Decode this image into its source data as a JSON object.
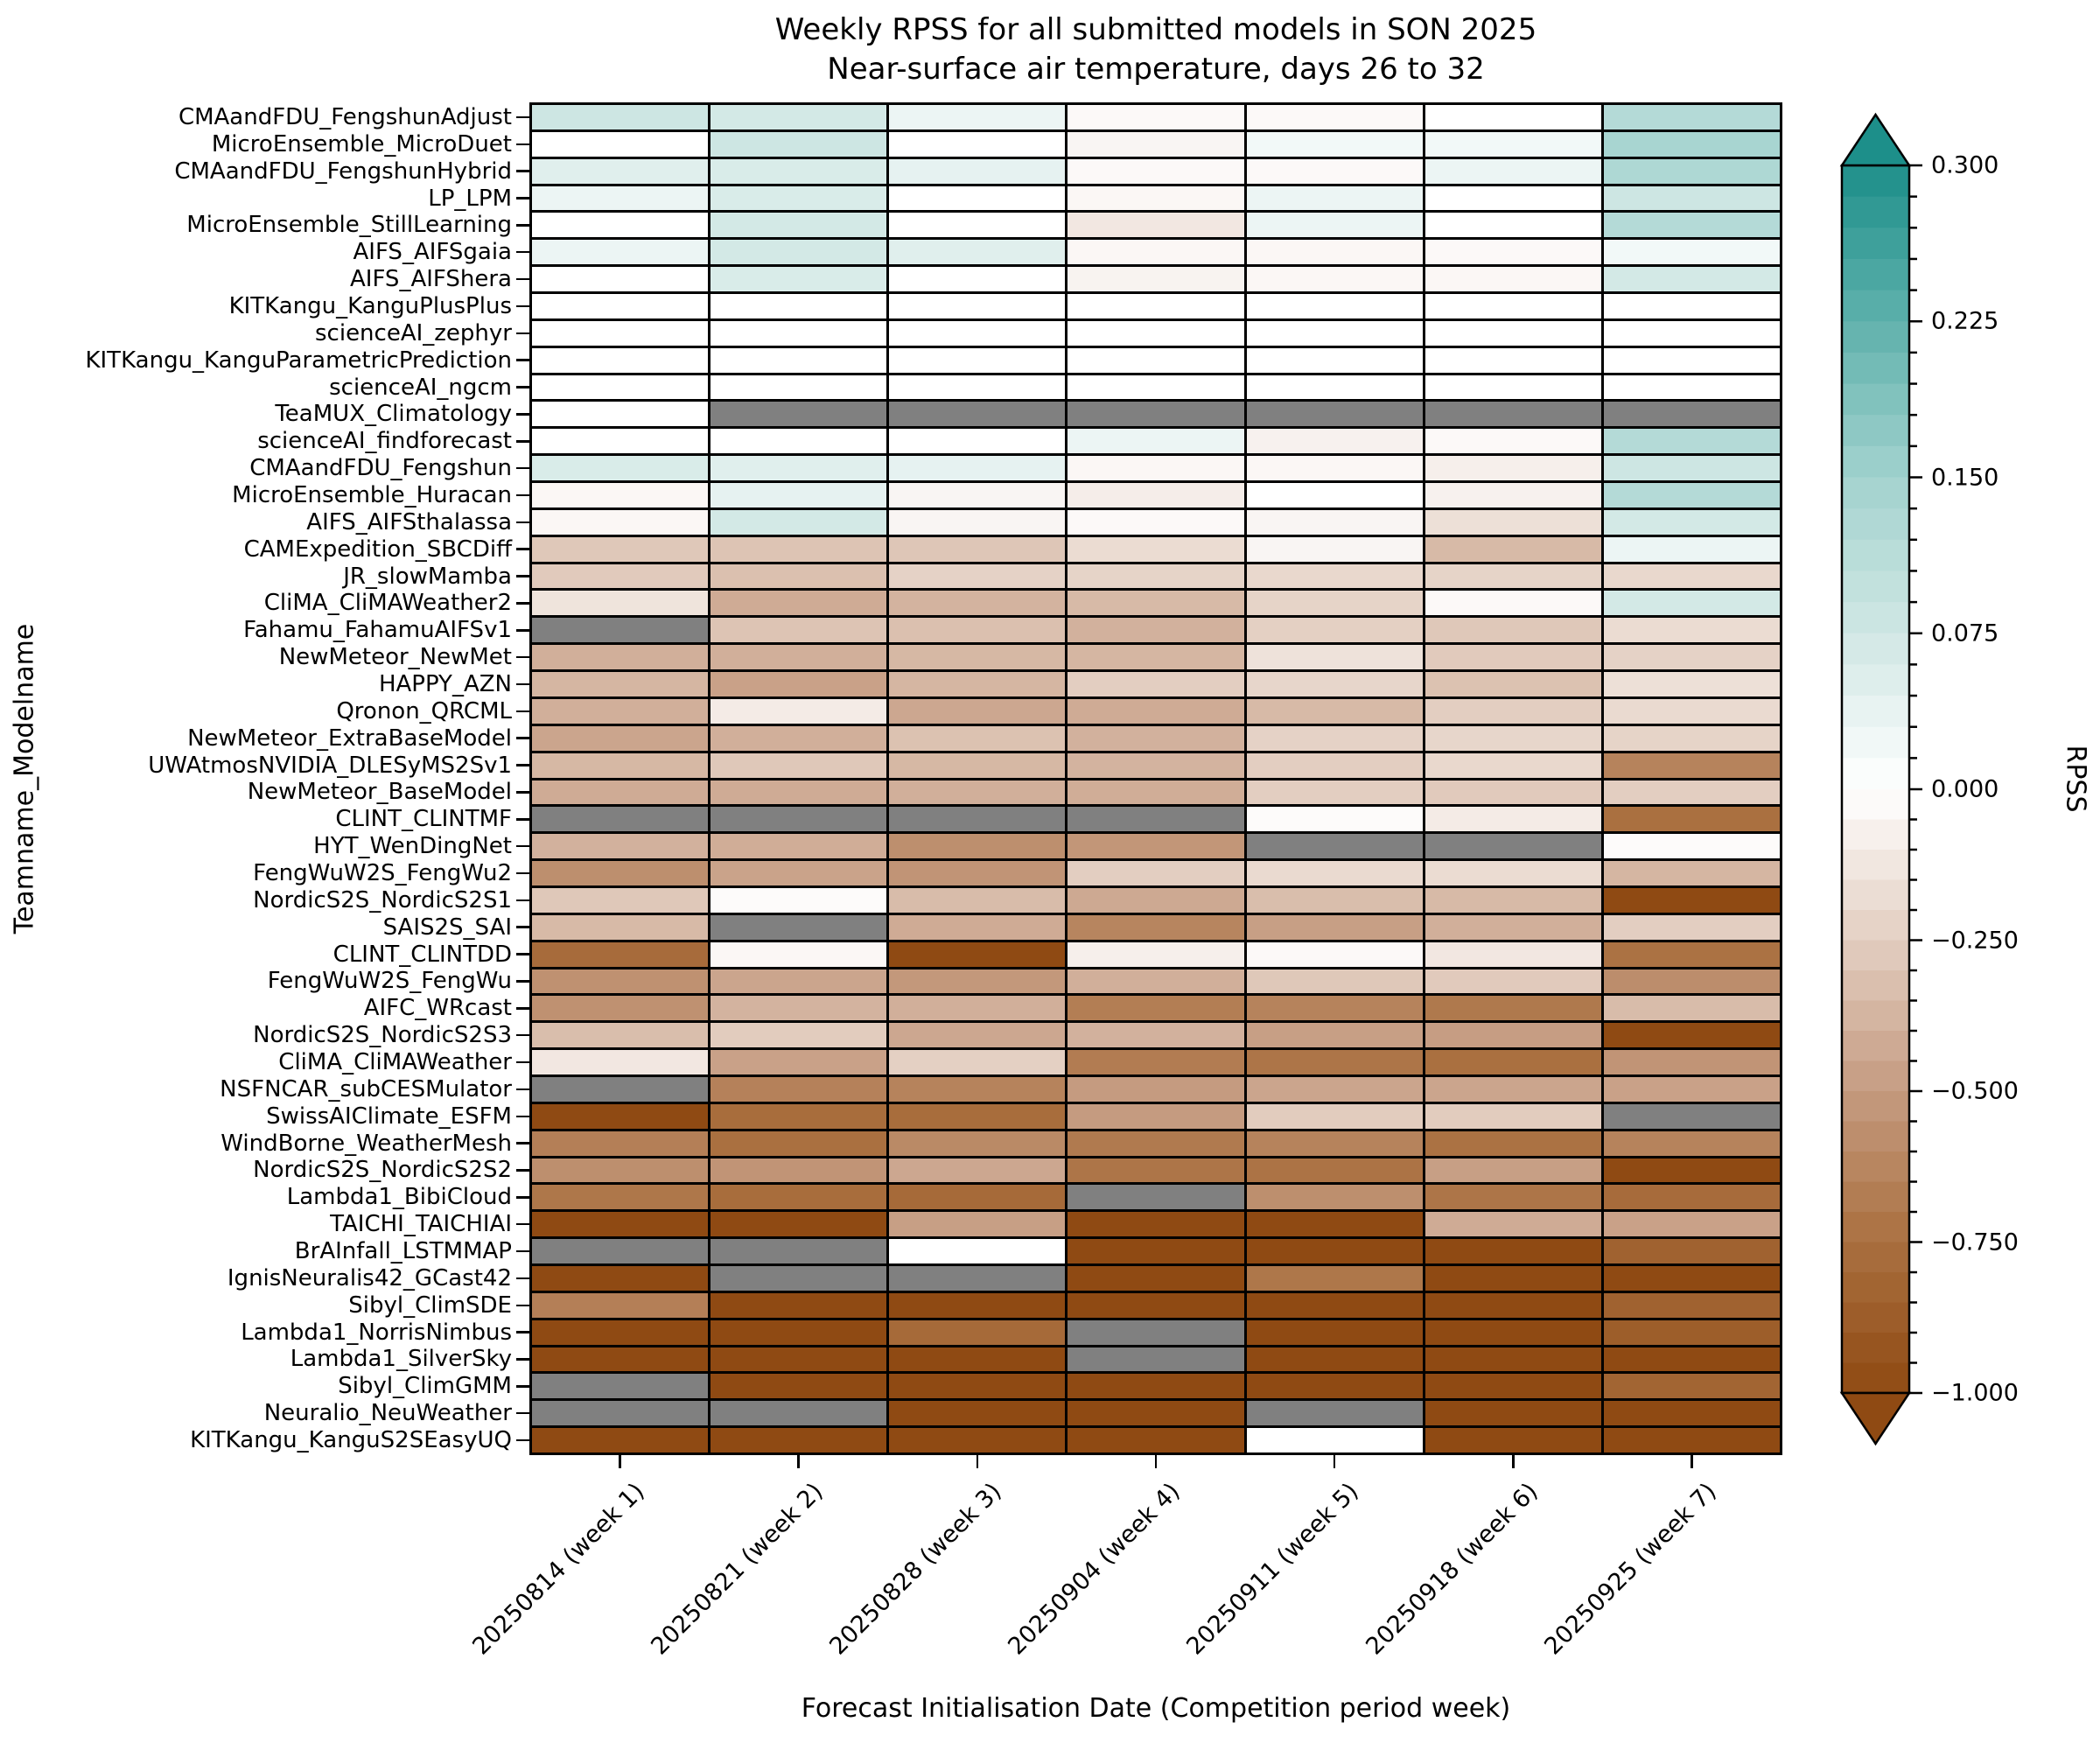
{
  "title": {
    "line1": "Weekly RPSS for all submitted models in SON 2025",
    "line2": "Near-surface air temperature, days 26 to 32"
  },
  "axes": {
    "xlabel": "Forecast Initialisation Date (Competition period week)",
    "ylabel": "Teamname_Modelname"
  },
  "colorbar": {
    "label": "RPSS",
    "ticks": [
      {
        "label": "0.300",
        "value": 0.3
      },
      {
        "label": "0.225",
        "value": 0.225
      },
      {
        "label": "0.150",
        "value": 0.15
      },
      {
        "label": "0.075",
        "value": 0.075
      },
      {
        "label": "0.000",
        "value": 0.0
      },
      {
        "label": "−0.250",
        "value": -0.25
      },
      {
        "label": "−0.500",
        "value": -0.5
      },
      {
        "label": "−0.750",
        "value": -0.75
      },
      {
        "label": "−1.000",
        "value": -1.0
      }
    ],
    "vmin": -1.0,
    "vcenter": 0.0,
    "vmax": 0.3,
    "positive_stops": [
      {
        "value": 0.0,
        "color": "#ffffff"
      },
      {
        "value": 0.075,
        "color": "#d0e7e4"
      },
      {
        "value": 0.15,
        "color": "#a2d2ce"
      },
      {
        "value": 0.225,
        "color": "#5fb1ac"
      },
      {
        "value": 0.3,
        "color": "#1d8f8a"
      }
    ],
    "negative_stops": [
      {
        "value": 0.0,
        "color": "#ffffff"
      },
      {
        "value": -0.25,
        "color": "#e3cec1"
      },
      {
        "value": -0.5,
        "color": "#c59b80"
      },
      {
        "value": -0.75,
        "color": "#aa7040"
      },
      {
        "value": -1.0,
        "color": "#8f4a13"
      }
    ],
    "missing_color": "#808080",
    "positive_levels": 20,
    "negative_levels": 20
  },
  "chart_data": {
    "type": "heatmap",
    "x_categories": [
      "20250814 (week 1)",
      "20250821 (week 2)",
      "20250828 (week 3)",
      "20250904 (week 4)",
      "20250911 (week 5)",
      "20250918 (week 6)",
      "20250925 (week 7)"
    ],
    "y_categories": [
      "CMAandFDU_FengshunAdjust",
      "MicroEnsemble_MicroDuet",
      "CMAandFDU_FengshunHybrid",
      "LP_LPM",
      "MicroEnsemble_StillLearning",
      "AIFS_AIFSgaia",
      "AIFS_AIFShera",
      "KITKangu_KanguPlusPlus",
      "scienceAI_zephyr",
      "KITKangu_KanguParametricPrediction",
      "scienceAI_ngcm",
      "TeaMUX_Climatology",
      "scienceAI_findforecast",
      "CMAandFDU_Fengshun",
      "MicroEnsemble_Huracan",
      "AIFS_AIFSthalassa",
      "CAMExpedition_SBCDiff",
      "JR_slowMamba",
      "CliMA_CliMAWeather2",
      "Fahamu_FahamuAIFSv1",
      "NewMeteor_NewMet",
      "HAPPY_AZN",
      "Qronon_QRCML",
      "NewMeteor_ExtraBaseModel",
      "UWAtmosNVIDIA_DLESyMS2Sv1",
      "NewMeteor_BaseModel",
      "CLINT_CLINTMF",
      "HYT_WenDingNet",
      "FengWuW2S_FengWu2",
      "NordicS2S_NordicS2S1",
      "SAIS2S_SAI",
      "CLINT_CLINTDD",
      "FengWuW2S_FengWu",
      "AIFC_WRcast",
      "NordicS2S_NordicS2S3",
      "CliMA_CliMAWeather",
      "NSFNCAR_subCESMulator",
      "SwissAIClimate_ESFM",
      "WindBorne_WeatherMesh",
      "NordicS2S_NordicS2S2",
      "Lambda1_BibiCloud",
      "TAICHI_TAICHIAI",
      "BrAInfall_LSTMMAP",
      "IgnisNeuralis42_GCast42",
      "Sibyl_ClimSDE",
      "Lambda1_NorrisNimbus",
      "Lambda1_SilverSky",
      "Sibyl_ClimGMM",
      "Neuralio_NeuWeather",
      "KITKangu_KanguS2SEasyUQ"
    ],
    "values": [
      [
        0.08,
        0.07,
        0.03,
        -0.03,
        -0.03,
        0.0,
        0.12
      ],
      [
        0.0,
        0.08,
        0.0,
        -0.05,
        0.02,
        0.02,
        0.14
      ],
      [
        0.05,
        0.06,
        0.04,
        -0.03,
        -0.03,
        0.03,
        0.13
      ],
      [
        0.03,
        0.06,
        0.0,
        -0.04,
        0.03,
        0.0,
        0.08
      ],
      [
        0.0,
        0.07,
        0.0,
        -0.12,
        0.03,
        0.0,
        0.12
      ],
      [
        0.03,
        0.07,
        0.05,
        -0.04,
        -0.04,
        -0.03,
        0.02
      ],
      [
        0.0,
        0.06,
        0.0,
        -0.06,
        -0.04,
        -0.04,
        0.07
      ],
      [
        0.0,
        0.0,
        0.0,
        0.0,
        0.0,
        0.0,
        0.0
      ],
      [
        0.0,
        0.0,
        0.0,
        0.0,
        0.0,
        0.0,
        0.0
      ],
      [
        0.0,
        0.0,
        0.0,
        0.0,
        0.0,
        0.0,
        0.0
      ],
      [
        0.0,
        0.0,
        0.0,
        0.0,
        0.0,
        0.0,
        0.0
      ],
      [
        0.0,
        null,
        null,
        null,
        null,
        null,
        null
      ],
      [
        0.0,
        0.0,
        0.0,
        0.03,
        -0.07,
        -0.03,
        0.12
      ],
      [
        0.06,
        0.05,
        0.04,
        -0.04,
        -0.04,
        -0.08,
        0.08
      ],
      [
        -0.04,
        0.04,
        -0.05,
        -0.09,
        0.0,
        -0.07,
        0.12
      ],
      [
        -0.04,
        0.07,
        -0.05,
        -0.03,
        -0.05,
        -0.16,
        0.07
      ],
      [
        -0.28,
        -0.3,
        -0.29,
        -0.18,
        -0.05,
        -0.35,
        0.03
      ],
      [
        -0.27,
        -0.32,
        -0.23,
        -0.22,
        -0.2,
        -0.22,
        -0.2
      ],
      [
        -0.14,
        -0.42,
        -0.38,
        -0.35,
        -0.22,
        -0.03,
        0.07
      ],
      [
        null,
        -0.3,
        -0.32,
        -0.39,
        -0.24,
        -0.28,
        -0.18
      ],
      [
        -0.4,
        -0.4,
        -0.36,
        -0.37,
        -0.15,
        -0.27,
        -0.23
      ],
      [
        -0.37,
        -0.47,
        -0.37,
        -0.25,
        -0.21,
        -0.31,
        -0.16
      ],
      [
        -0.4,
        -0.1,
        -0.44,
        -0.42,
        -0.35,
        -0.25,
        -0.19
      ],
      [
        -0.45,
        -0.4,
        -0.31,
        -0.39,
        -0.23,
        -0.21,
        -0.22
      ],
      [
        -0.36,
        -0.28,
        -0.36,
        -0.38,
        -0.25,
        -0.2,
        -0.64
      ],
      [
        -0.42,
        -0.42,
        -0.4,
        -0.41,
        -0.25,
        -0.27,
        -0.25
      ],
      [
        null,
        null,
        null,
        null,
        -0.02,
        -0.1,
        -0.75
      ],
      [
        -0.39,
        -0.41,
        -0.57,
        -0.53,
        null,
        null,
        -0.02
      ],
      [
        -0.57,
        -0.46,
        -0.54,
        -0.25,
        -0.19,
        -0.18,
        -0.37
      ],
      [
        -0.28,
        -0.02,
        -0.34,
        -0.43,
        -0.33,
        -0.35,
        -1.0
      ],
      [
        -0.35,
        null,
        -0.42,
        -0.63,
        -0.48,
        -0.4,
        -0.25
      ],
      [
        -0.78,
        -0.04,
        -1.0,
        -0.08,
        -0.03,
        -0.12,
        -0.74
      ],
      [
        -0.56,
        -0.45,
        -0.52,
        -0.4,
        -0.28,
        -0.27,
        -0.58
      ],
      [
        -0.56,
        -0.38,
        -0.4,
        -0.67,
        -0.64,
        -0.7,
        -0.34
      ],
      [
        -0.33,
        -0.26,
        -0.44,
        -0.39,
        -0.48,
        -0.49,
        -1.0
      ],
      [
        -0.12,
        -0.47,
        -0.24,
        -0.68,
        -0.72,
        -0.75,
        -0.54
      ],
      [
        null,
        -0.65,
        -0.64,
        -0.5,
        -0.45,
        -0.45,
        -0.47
      ],
      [
        -1.0,
        -0.77,
        -0.77,
        -0.5,
        -0.26,
        -0.26,
        null
      ],
      [
        -0.66,
        -0.75,
        -0.6,
        -0.69,
        -0.64,
        -0.74,
        -0.64
      ],
      [
        -0.57,
        -0.54,
        -0.44,
        -0.72,
        -0.73,
        -0.48,
        -1.0
      ],
      [
        -0.71,
        -0.77,
        -0.79,
        null,
        -0.57,
        -0.72,
        -0.78
      ],
      [
        -1.0,
        -1.0,
        -0.48,
        -1.0,
        -1.0,
        -0.42,
        -0.47
      ],
      [
        null,
        null,
        0.0,
        -1.0,
        -1.0,
        -1.0,
        -0.84
      ],
      [
        -1.0,
        null,
        null,
        -1.0,
        -0.71,
        -1.0,
        -1.0
      ],
      [
        -0.66,
        -1.0,
        -1.0,
        -1.0,
        -1.0,
        -1.0,
        -0.84
      ],
      [
        -1.0,
        -1.0,
        -0.79,
        null,
        -1.0,
        -1.0,
        -0.87
      ],
      [
        -1.0,
        -1.0,
        -1.0,
        null,
        -1.0,
        -1.0,
        -1.0
      ],
      [
        null,
        -1.0,
        -1.0,
        -1.0,
        -1.0,
        -1.0,
        -0.82
      ],
      [
        null,
        null,
        -1.0,
        -1.0,
        null,
        -1.0,
        -1.0
      ],
      [
        -1.0,
        -1.0,
        -1.0,
        -1.0,
        0.0,
        -1.0,
        -1.0
      ]
    ],
    "grid_line_color": "#000000",
    "legend_position": "right-colorbar"
  }
}
